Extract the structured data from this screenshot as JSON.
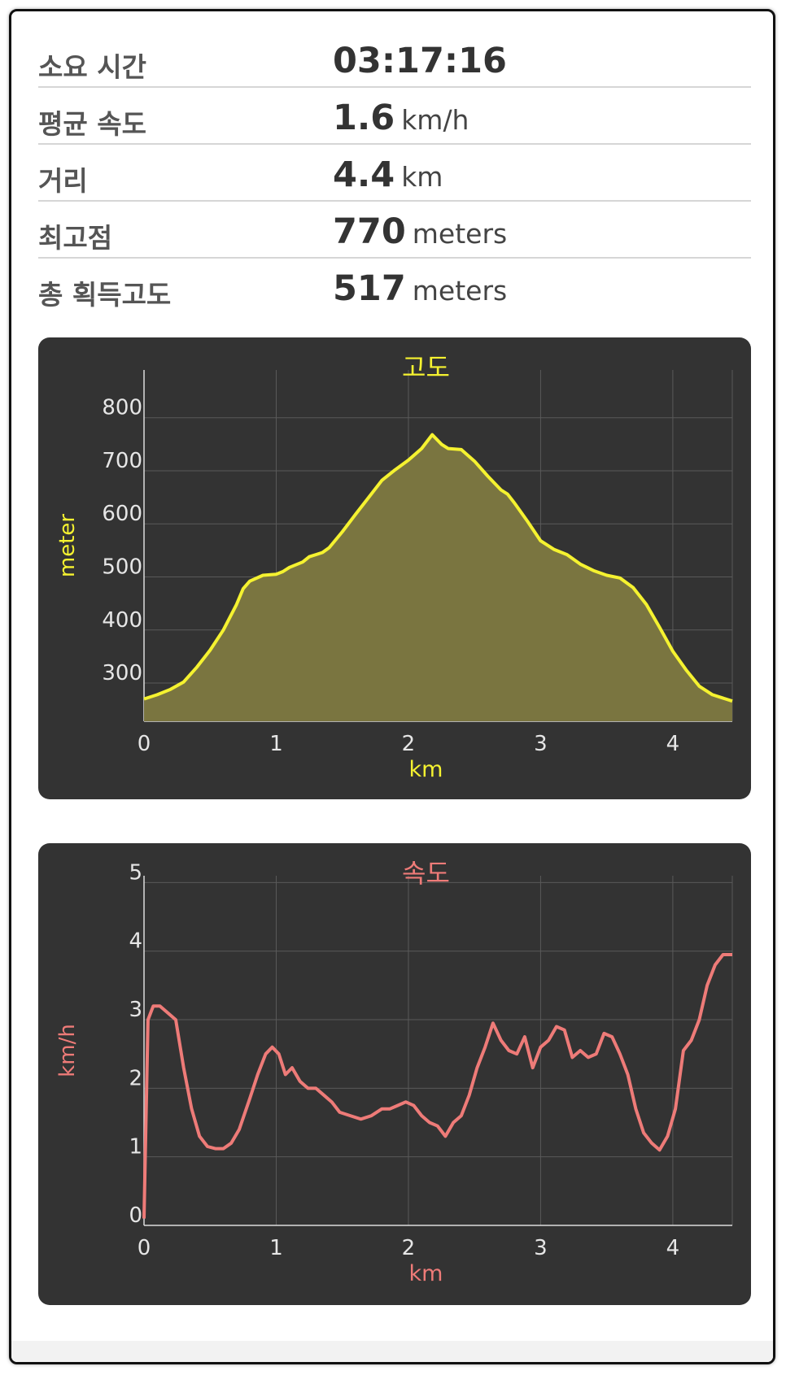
{
  "stats": [
    {
      "label": "소요 시간",
      "value": "03:17:16",
      "unit": ""
    },
    {
      "label": "평균 속도",
      "value": "1.6",
      "unit": "km/h"
    },
    {
      "label": "거리",
      "value": "4.4",
      "unit": "km"
    },
    {
      "label": "최고점",
      "value": "770",
      "unit": "meters"
    },
    {
      "label": "총 획득고도",
      "value": "517",
      "unit": "meters"
    }
  ],
  "colors": {
    "altitude": "#f5f230",
    "altitude_fill": "#7a7540",
    "speed": "#ee7b78",
    "card": "#333333",
    "grid": "#5a5a5a",
    "tick": "#e6e6e6"
  },
  "chart_data": [
    {
      "type": "area",
      "title": "고도",
      "xlabel": "km",
      "ylabel": "meter",
      "xlim": [
        0,
        4.45
      ],
      "ylim": [
        228,
        890
      ],
      "xticks": [
        "0",
        "1",
        "2",
        "3",
        "4"
      ],
      "yticks": [
        "300",
        "400",
        "500",
        "600",
        "700",
        "800"
      ],
      "grid": true,
      "x": [
        0,
        0.1,
        0.2,
        0.3,
        0.4,
        0.5,
        0.6,
        0.7,
        0.75,
        0.8,
        0.9,
        1.0,
        1.05,
        1.1,
        1.2,
        1.25,
        1.3,
        1.35,
        1.4,
        1.5,
        1.6,
        1.7,
        1.8,
        1.9,
        2.0,
        2.1,
        2.18,
        2.25,
        2.3,
        2.4,
        2.5,
        2.6,
        2.7,
        2.75,
        2.8,
        2.9,
        3.0,
        3.1,
        3.2,
        3.3,
        3.4,
        3.5,
        3.6,
        3.7,
        3.8,
        3.9,
        4.0,
        4.1,
        4.2,
        4.3,
        4.45
      ],
      "y": [
        270,
        278,
        288,
        302,
        330,
        362,
        400,
        448,
        478,
        492,
        503,
        505,
        510,
        518,
        528,
        538,
        542,
        546,
        555,
        585,
        618,
        650,
        682,
        702,
        720,
        742,
        768,
        750,
        742,
        740,
        718,
        690,
        664,
        656,
        640,
        605,
        568,
        552,
        542,
        524,
        512,
        503,
        498,
        480,
        448,
        405,
        360,
        325,
        294,
        278,
        266
      ]
    },
    {
      "type": "line",
      "title": "속도",
      "xlabel": "km",
      "ylabel": "km/h",
      "xlim": [
        0,
        4.45
      ],
      "ylim": [
        0,
        5.1
      ],
      "xticks": [
        "0",
        "1",
        "2",
        "3",
        "4"
      ],
      "yticks": [
        "0",
        "1",
        "2",
        "3",
        "4",
        "5"
      ],
      "grid": true,
      "x": [
        0,
        0.03,
        0.07,
        0.12,
        0.18,
        0.24,
        0.3,
        0.36,
        0.42,
        0.48,
        0.54,
        0.6,
        0.66,
        0.72,
        0.8,
        0.86,
        0.92,
        0.97,
        1.02,
        1.07,
        1.12,
        1.18,
        1.24,
        1.3,
        1.36,
        1.42,
        1.48,
        1.56,
        1.64,
        1.72,
        1.8,
        1.86,
        1.92,
        1.98,
        2.04,
        2.1,
        2.16,
        2.22,
        2.28,
        2.34,
        2.4,
        2.46,
        2.52,
        2.58,
        2.64,
        2.7,
        2.76,
        2.82,
        2.88,
        2.94,
        3.0,
        3.06,
        3.12,
        3.18,
        3.24,
        3.3,
        3.36,
        3.42,
        3.48,
        3.54,
        3.6,
        3.66,
        3.72,
        3.78,
        3.84,
        3.9,
        3.96,
        4.02,
        4.08,
        4.14,
        4.2,
        4.26,
        4.32,
        4.38,
        4.45
      ],
      "y": [
        0.1,
        3.0,
        3.2,
        3.2,
        3.1,
        3.0,
        2.3,
        1.7,
        1.3,
        1.15,
        1.12,
        1.12,
        1.2,
        1.4,
        1.85,
        2.2,
        2.5,
        2.6,
        2.5,
        2.2,
        2.3,
        2.1,
        2.0,
        2.0,
        1.9,
        1.8,
        1.65,
        1.6,
        1.55,
        1.6,
        1.7,
        1.7,
        1.75,
        1.8,
        1.75,
        1.6,
        1.5,
        1.45,
        1.3,
        1.5,
        1.6,
        1.9,
        2.3,
        2.6,
        2.95,
        2.7,
        2.55,
        2.5,
        2.75,
        2.3,
        2.6,
        2.7,
        2.9,
        2.85,
        2.45,
        2.55,
        2.45,
        2.5,
        2.8,
        2.75,
        2.5,
        2.2,
        1.7,
        1.35,
        1.2,
        1.1,
        1.3,
        1.7,
        2.55,
        2.7,
        3.0,
        3.5,
        3.8,
        3.95,
        3.95
      ]
    }
  ]
}
